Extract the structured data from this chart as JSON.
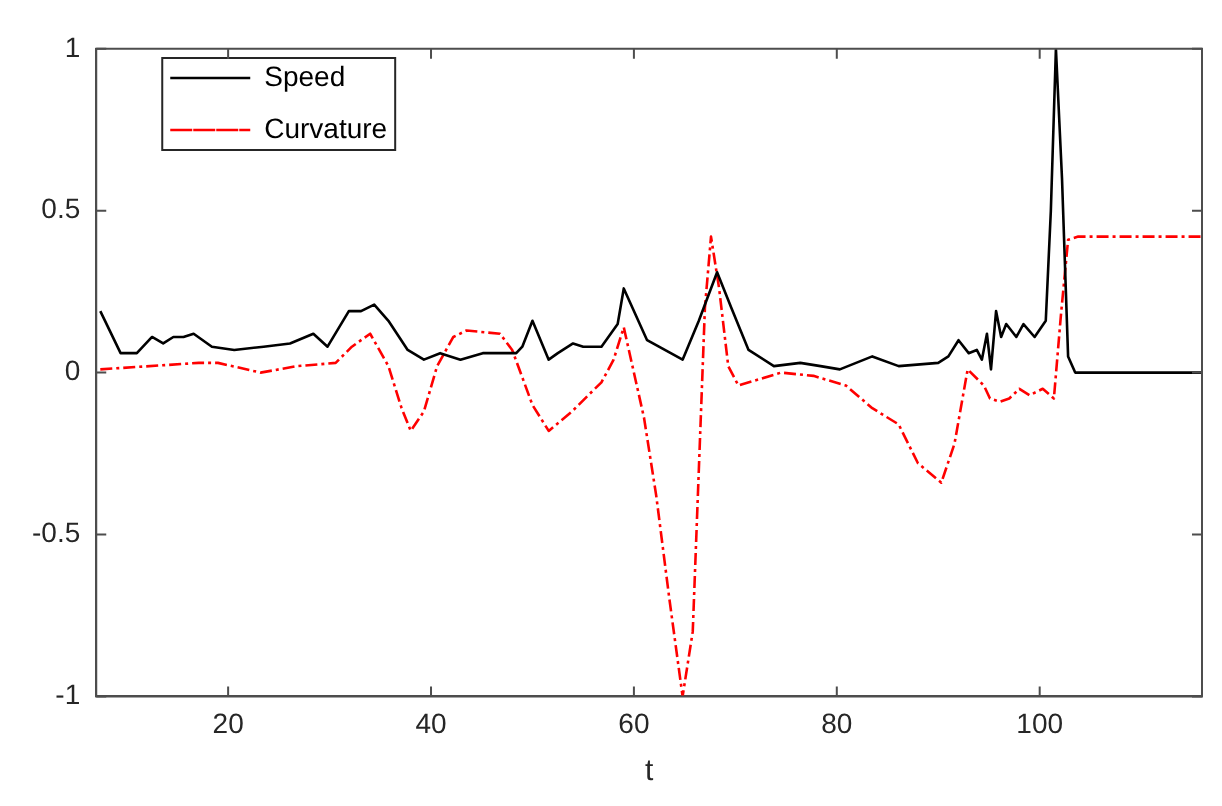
{
  "chart_data": {
    "type": "line",
    "xlabel": "t",
    "xlim": [
      7,
      116
    ],
    "xticks": [
      20,
      40,
      60,
      80,
      100
    ],
    "ylim": [
      -1,
      1
    ],
    "yticks": [
      -1,
      -0.5,
      0,
      0.5,
      1
    ],
    "grid": false,
    "legend": "top left",
    "marker": "none",
    "series": [
      {
        "name": "Speed",
        "color": "#000000",
        "line_style": "solid",
        "x": [
          7.4,
          9.4,
          11,
          12.5,
          13.6,
          14.6,
          15.6,
          16.6,
          18.4,
          20.6,
          23.5,
          26.1,
          28.4,
          29.8,
          31.9,
          33.1,
          34.4,
          35.8,
          37.7,
          39.3,
          40.9,
          42.9,
          45.1,
          48.4,
          49,
          50,
          51.6,
          52.5,
          54,
          55,
          56.8,
          58.4,
          59,
          61.3,
          64.8,
          66.4,
          68.2,
          69.6,
          71.3,
          73.8,
          76.4,
          78.4,
          80.3,
          83.5,
          86.1,
          90,
          91,
          92,
          93,
          93.8,
          94.3,
          94.8,
          95.2,
          95.7,
          96.2,
          96.7,
          97.7,
          98.4,
          99.5,
          100.6,
          101.1,
          101.6,
          102.2,
          102.8,
          103.5,
          116
        ],
        "values": [
          0.19,
          0.06,
          0.06,
          0.11,
          0.09,
          0.11,
          0.11,
          0.12,
          0.08,
          0.07,
          0.08,
          0.09,
          0.12,
          0.08,
          0.19,
          0.19,
          0.21,
          0.16,
          0.07,
          0.04,
          0.06,
          0.04,
          0.06,
          0.06,
          0.08,
          0.16,
          0.04,
          0.06,
          0.09,
          0.08,
          0.08,
          0.15,
          0.26,
          0.1,
          0.04,
          0.16,
          0.31,
          0.2,
          0.07,
          0.02,
          0.03,
          0.02,
          0.01,
          0.05,
          0.02,
          0.03,
          0.05,
          0.1,
          0.06,
          0.07,
          0.04,
          0.12,
          0.01,
          0.19,
          0.11,
          0.15,
          0.11,
          0.15,
          0.11,
          0.16,
          0.5,
          1,
          0.6,
          0.05,
          0,
          0
        ]
      },
      {
        "name": "Curvature",
        "color": "#ff0000",
        "line_style": "dashed",
        "x": [
          7.4,
          17.1,
          19,
          23.2,
          26.8,
          30.6,
          32.2,
          34,
          35.8,
          37.1,
          38,
          39.3,
          40.6,
          42.2,
          43.5,
          46.8,
          48,
          50,
          51.6,
          53.9,
          55.5,
          56.8,
          58,
          59,
          61,
          62.2,
          63.5,
          64.8,
          65.8,
          66.4,
          67,
          67.6,
          68.4,
          69.3,
          70.3,
          74.5,
          77.7,
          80.9,
          83.5,
          86.1,
          88,
          90.3,
          91.6,
          92.9,
          94.5,
          95.1,
          96.1,
          97,
          98,
          99,
          100.3,
          101.4,
          102.1,
          102.8,
          103.8,
          116
        ],
        "values": [
          0.01,
          0.03,
          0.03,
          0,
          0.02,
          0.03,
          0.08,
          0.12,
          0.02,
          -0.11,
          -0.18,
          -0.12,
          0.02,
          0.11,
          0.13,
          0.12,
          0.07,
          -0.1,
          -0.18,
          -0.12,
          -0.07,
          -0.03,
          0.04,
          0.14,
          -0.14,
          -0.38,
          -0.7,
          -1,
          -0.8,
          -0.3,
          0.2,
          0.42,
          0.26,
          0.02,
          -0.04,
          0,
          -0.01,
          -0.04,
          -0.11,
          -0.16,
          -0.28,
          -0.34,
          -0.22,
          0.01,
          -0.04,
          -0.08,
          -0.09,
          -0.08,
          -0.05,
          -0.07,
          -0.05,
          -0.08,
          0.18,
          0.41,
          0.42,
          0.42
        ]
      }
    ]
  }
}
